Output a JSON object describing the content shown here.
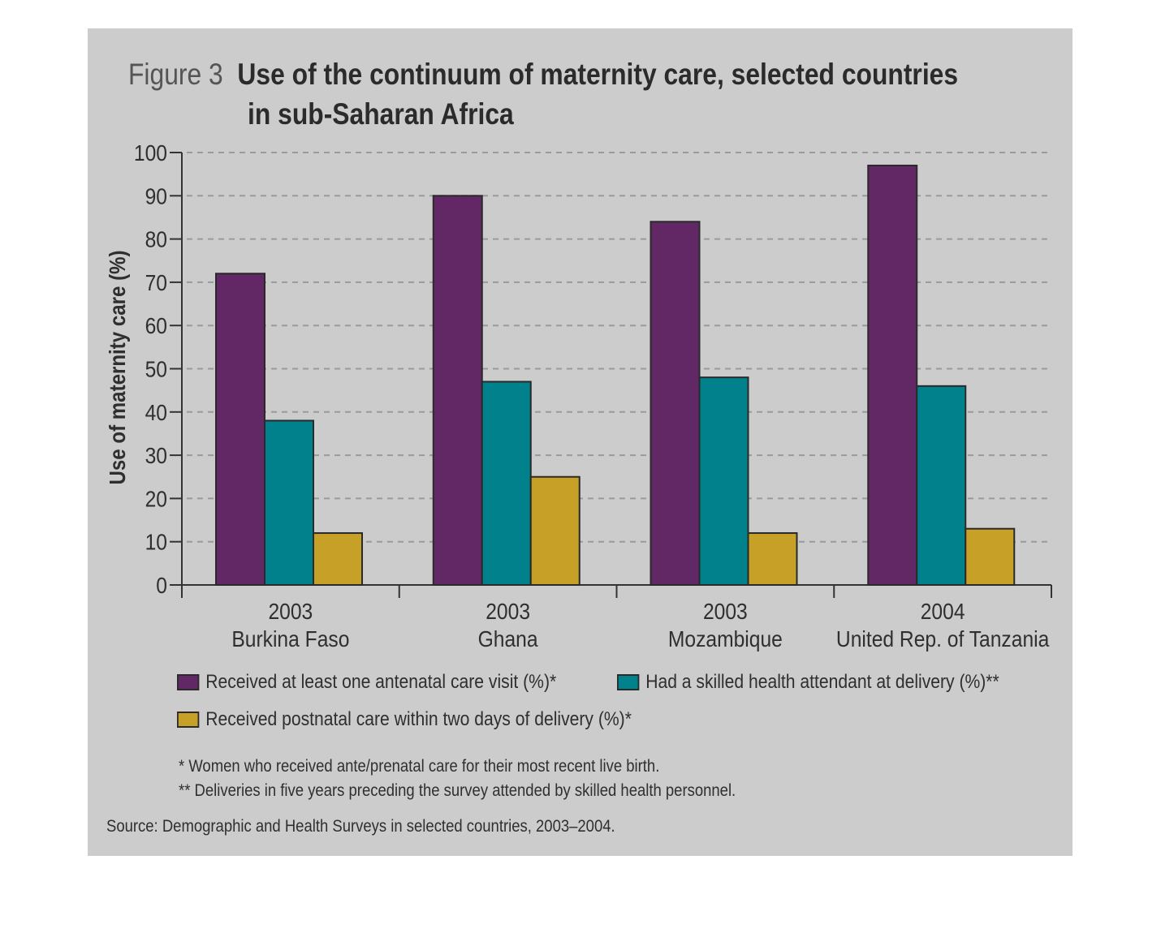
{
  "figure": {
    "number": "Figure 3",
    "title_line1": "Use of the continuum of maternity care, selected countries",
    "title_line2": "in sub-Saharan Africa"
  },
  "chart_data": {
    "type": "bar",
    "title": "Use of the continuum of maternity care, selected countries in sub-Saharan Africa",
    "xlabel": "",
    "ylabel": "Use of maternity care (%)",
    "ylim": [
      0,
      100
    ],
    "yticks": [
      0,
      10,
      20,
      30,
      40,
      50,
      60,
      70,
      80,
      90,
      100
    ],
    "grid": true,
    "categories": [
      {
        "year": "2003",
        "country": "Burkina Faso"
      },
      {
        "year": "2003",
        "country": "Ghana"
      },
      {
        "year": "2003",
        "country": "Mozambique"
      },
      {
        "year": "2004",
        "country": "United Rep. of Tanzania"
      }
    ],
    "series": [
      {
        "name": "Received at least one antenatal care visit (%)*",
        "color": "#622865",
        "values": [
          72,
          90,
          84,
          97
        ]
      },
      {
        "name": "Had a skilled health attendant at delivery (%)**",
        "color": "#00818b",
        "values": [
          38,
          47,
          48,
          46
        ]
      },
      {
        "name": "Received postnatal care within two days of delivery (%)*",
        "color": "#c6a027",
        "values": [
          12,
          25,
          12,
          13
        ]
      }
    ],
    "legend_position": "bottom"
  },
  "notes": [
    "* Women who received ante/prenatal care for their most recent live birth.",
    "** Deliveries in five years preceding the survey attended by skilled health personnel."
  ],
  "source": "Source: Demographic and Health Surveys in selected countries, 2003–2004."
}
